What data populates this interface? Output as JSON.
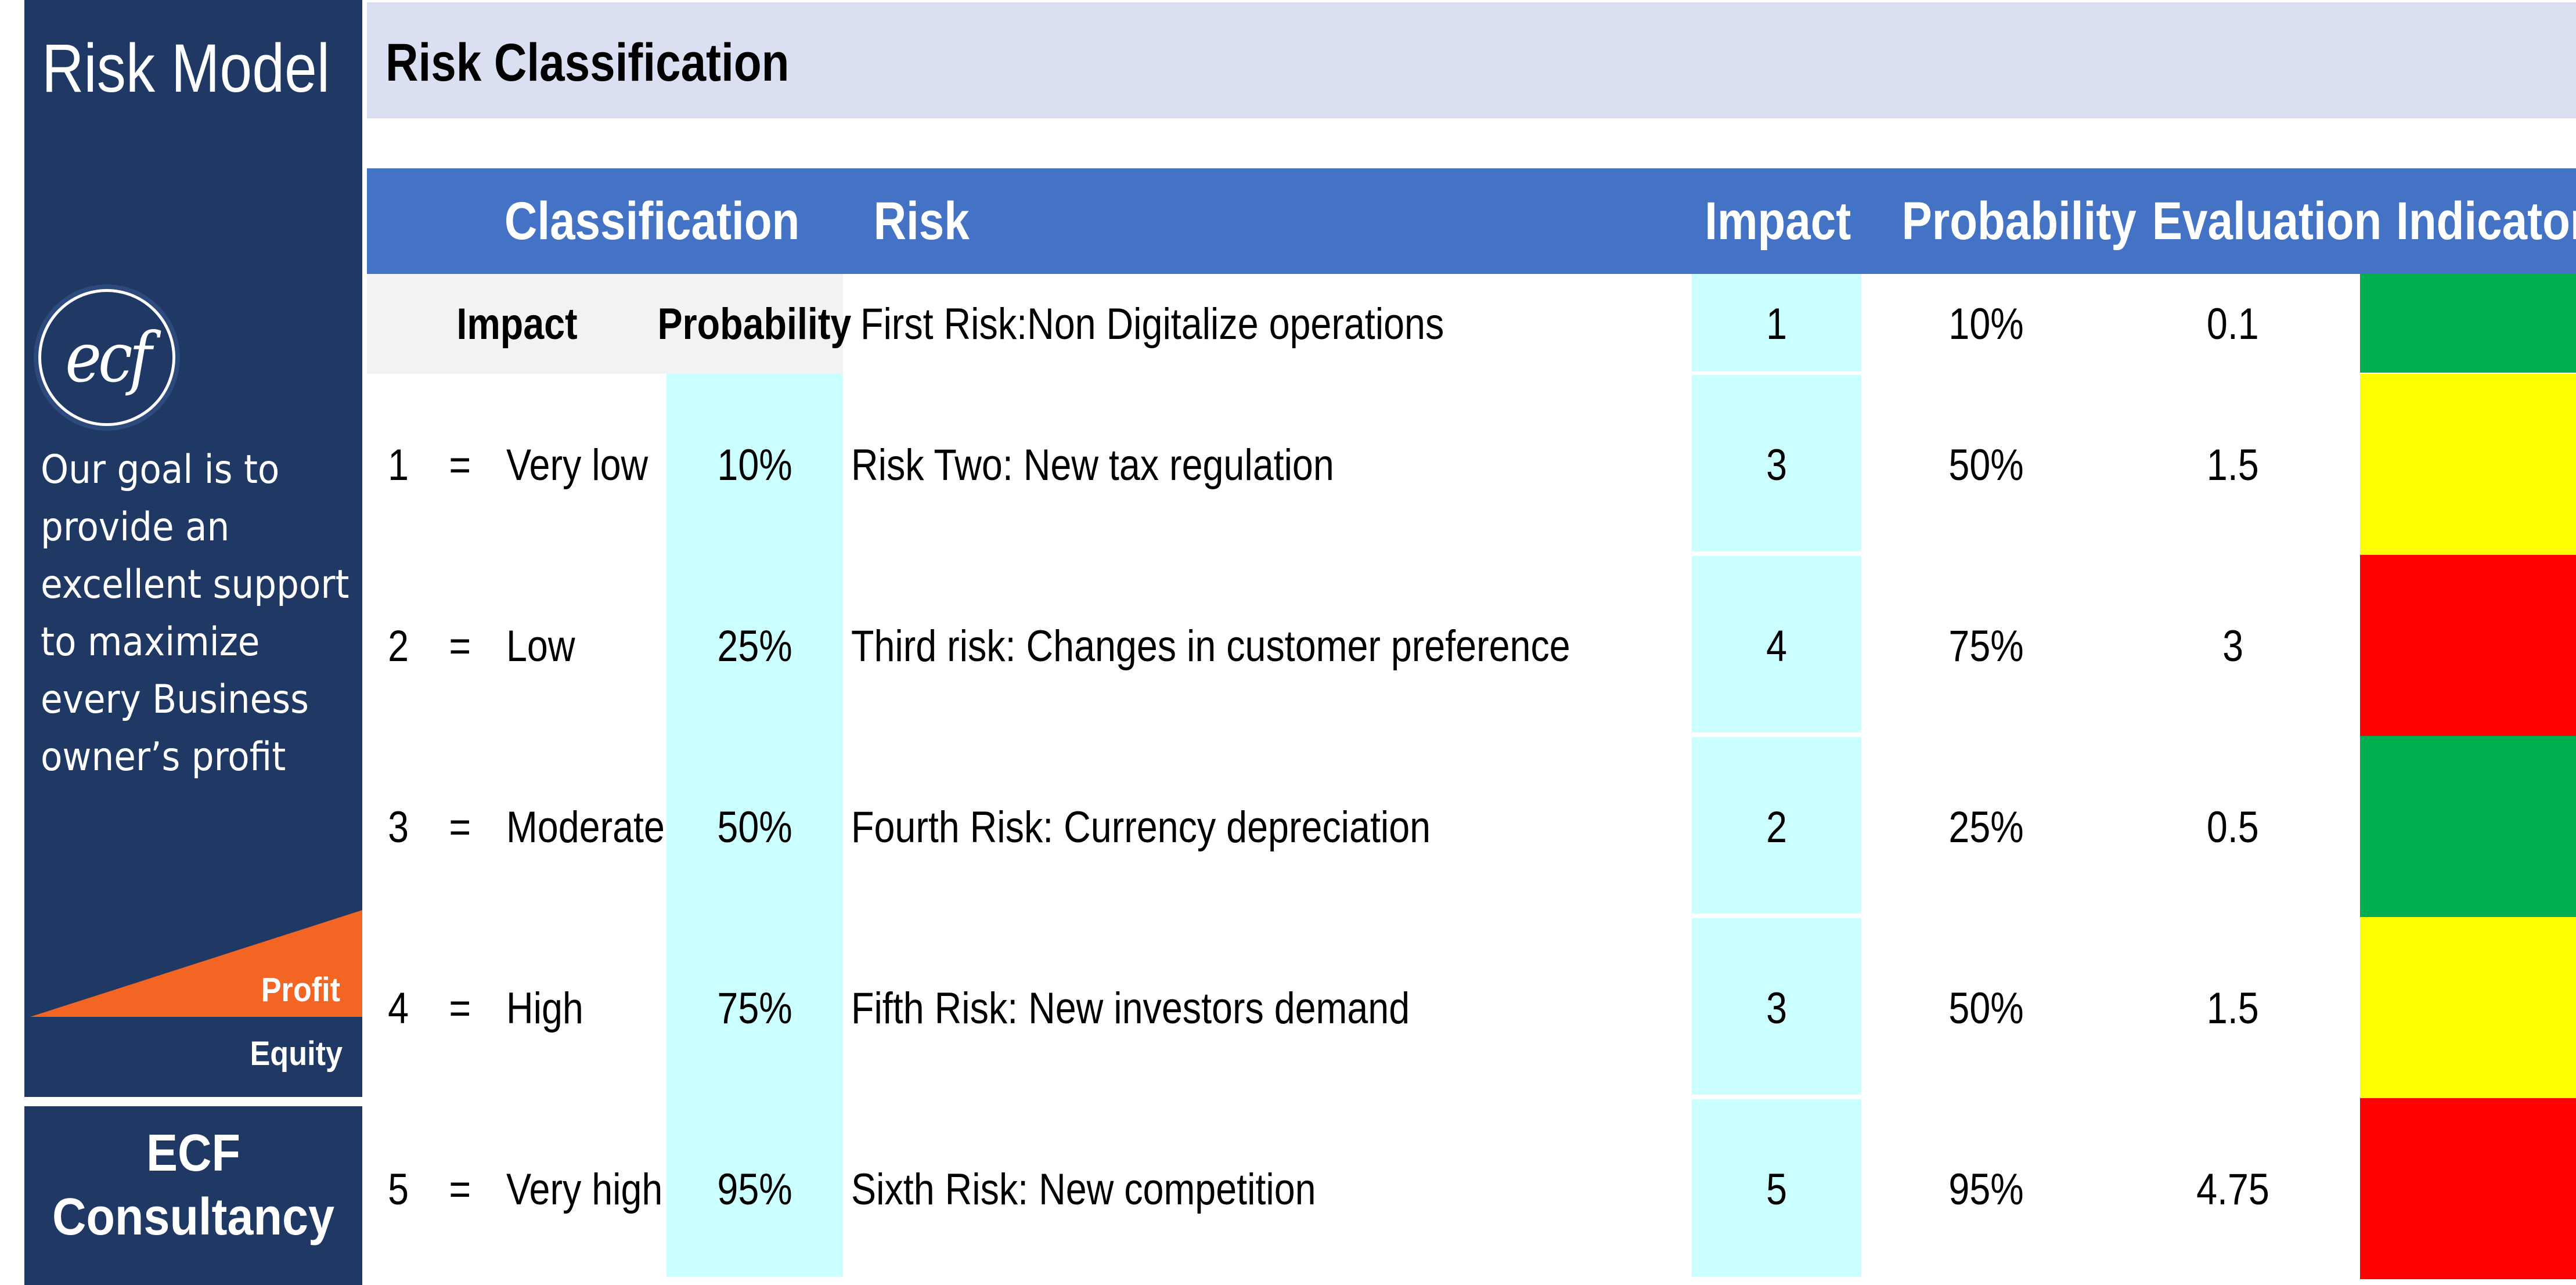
{
  "sidebar": {
    "title": "Risk Model",
    "logo_text": "ecf",
    "goal_text": "Our goal is to provide an excellent support to maximize every Business owner’s profit",
    "profit_label": "Profit",
    "equity_label": "Equity",
    "brand_line1": "ECF",
    "brand_line2": "Consultancy"
  },
  "header": {
    "title": "Risk Classification"
  },
  "table_header": {
    "classification": "Classification",
    "risk": "Risk",
    "impact": "Impact",
    "probability": "Probability",
    "evaluation": "Evaluation",
    "indicator": "Indicator"
  },
  "classification_header": {
    "impact": "Impact",
    "probability": "Probability"
  },
  "classification": [
    {
      "num": "1",
      "eq": "=",
      "label": "Very low",
      "prob": "10%"
    },
    {
      "num": "2",
      "eq": "=",
      "label": "Low",
      "prob": "25%"
    },
    {
      "num": "3",
      "eq": "=",
      "label": "Moderate",
      "prob": "50%"
    },
    {
      "num": "4",
      "eq": "=",
      "label": "High",
      "prob": "75%"
    },
    {
      "num": "5",
      "eq": "=",
      "label": "Very high",
      "prob": "95%"
    }
  ],
  "risks": [
    {
      "name": "First Risk:Non Digitalize operations",
      "impact": "1",
      "probability": "10%",
      "evaluation": "0.1",
      "indicator_color": "#00b050"
    },
    {
      "name": "Risk Two: New tax regulation",
      "impact": "3",
      "probability": "50%",
      "evaluation": "1.5",
      "indicator_color": "#ffff00"
    },
    {
      "name": "Third risk: Changes in customer preference",
      "impact": "4",
      "probability": "75%",
      "evaluation": "3",
      "indicator_color": "#ff0000"
    },
    {
      "name": "Fourth Risk: Currency depreciation",
      "impact": "2",
      "probability": "25%",
      "evaluation": "0.5",
      "indicator_color": "#00b050"
    },
    {
      "name": "Fifth Risk: New investors demand",
      "impact": "3",
      "probability": "50%",
      "evaluation": "1.5",
      "indicator_color": "#ffff00"
    },
    {
      "name": "Sixth Risk: New competition",
      "impact": "5",
      "probability": "95%",
      "evaluation": "4.75",
      "indicator_color": "#ff0000"
    }
  ],
  "colors": {
    "navy": "#1f3864",
    "header_blue": "#4472c4",
    "title_band": "#dae0f2",
    "cyan": "#ccffff",
    "orange": "#f26522"
  }
}
